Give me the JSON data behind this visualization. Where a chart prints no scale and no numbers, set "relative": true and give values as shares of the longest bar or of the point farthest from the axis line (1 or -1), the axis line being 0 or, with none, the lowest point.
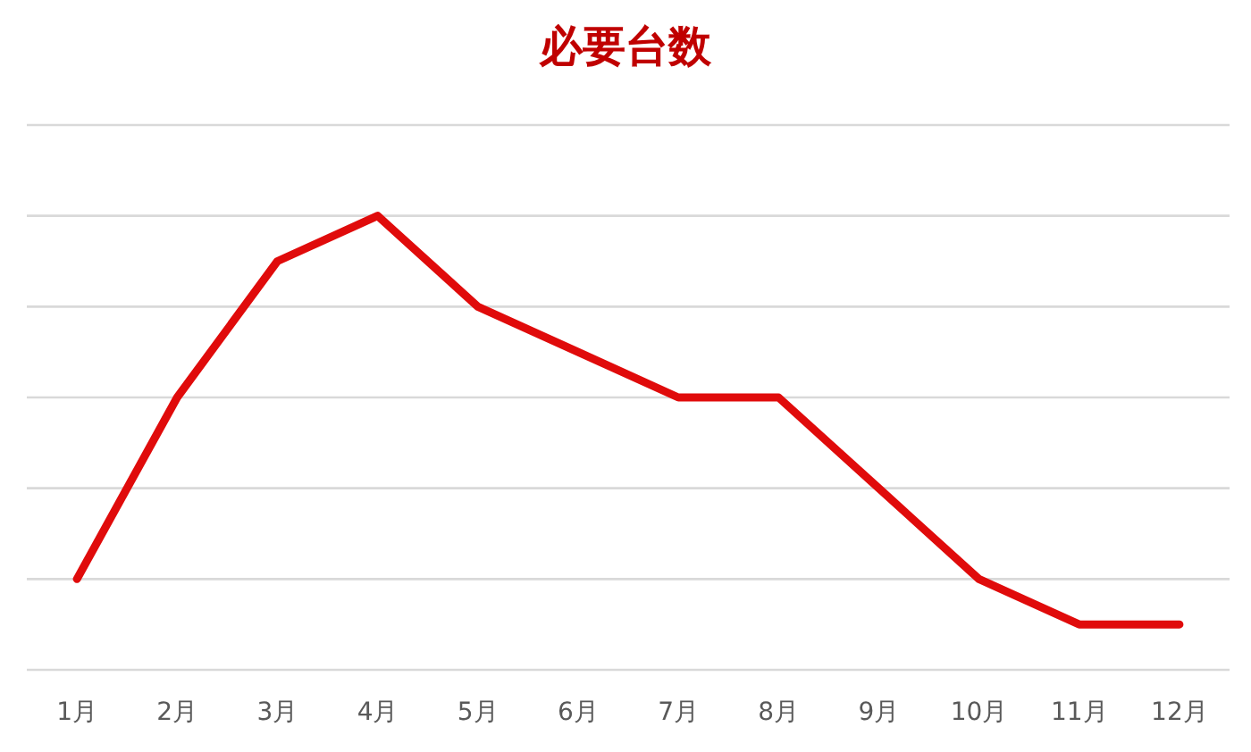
{
  "chart_data": {
    "type": "line",
    "title": "必要台数",
    "relative": true,
    "grid": "y",
    "marker": "none",
    "line_style": "solid",
    "categories": [
      "1月",
      "2月",
      "3月",
      "4月",
      "5月",
      "6月",
      "7月",
      "8月",
      "9月",
      "10月",
      "11月",
      "12月"
    ],
    "series": [
      {
        "color": "#e00b0b",
        "values": [
          0.2,
          0.6,
          0.9,
          1,
          0.8,
          0.7,
          0.6,
          0.6,
          0.4,
          0.2,
          0.1,
          0.1
        ]
      }
    ]
  }
}
